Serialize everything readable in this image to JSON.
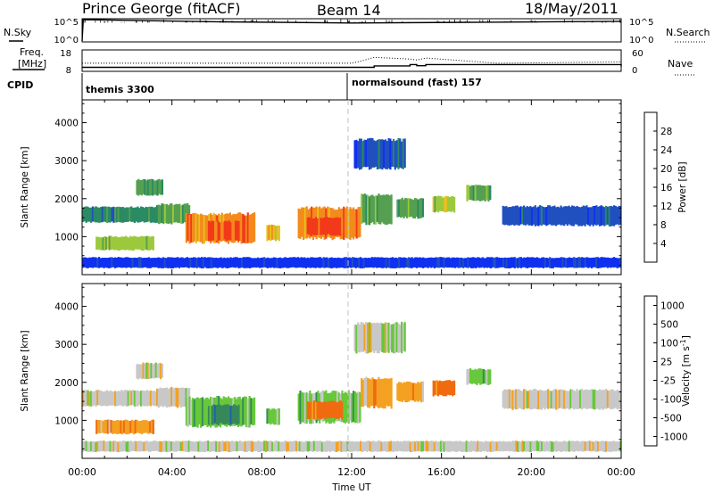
{
  "header": {
    "station": "Prince George (fitACF)",
    "beam": "Beam 14",
    "date": "18/May/2011"
  },
  "top_panels": {
    "nsky_label": "N.Sky",
    "nsky_ticks": [
      "10^5",
      "10^0"
    ],
    "nsearch_label": "N.Search",
    "nsearch_ticks": [
      "10^5",
      "10^0"
    ],
    "freq_label": "Freq.",
    "freq_unit": "[MHz]",
    "freq_ticks": [
      "18",
      "8"
    ],
    "nave_label": "Nave",
    "nave_ticks": [
      "60",
      "0"
    ],
    "cpid_label": "CPID",
    "cpid_entries": [
      {
        "name": "themis 3300",
        "start_hour": 0
      },
      {
        "name": "normalsound (fast) 157",
        "start_hour": 12
      }
    ]
  },
  "chart_data": [
    {
      "type": "heatmap",
      "panel": "power",
      "ylabel": "Slant Range [km]",
      "xlim": [
        0,
        24
      ],
      "ylim": [
        0,
        4600
      ],
      "yticks": [
        1000,
        2000,
        3000,
        4000
      ],
      "xticks": [
        "00:00",
        "04:00",
        "08:00",
        "12:00",
        "16:00",
        "20:00",
        "00:00"
      ],
      "colorbar": {
        "label": "Power [dB]",
        "min": 0,
        "max": 32,
        "ticks": [
          4,
          8,
          12,
          16,
          20,
          24,
          28
        ]
      },
      "colors": [
        "#1030f0",
        "#2050c0",
        "#2a8a64",
        "#55a050",
        "#9cc93c",
        "#e8c020",
        "#f48a1c",
        "#f23a1a"
      ],
      "echo_regions": [
        {
          "t0": 0.0,
          "t1": 3.3,
          "r0": 1380,
          "r1": 1780,
          "level": 2
        },
        {
          "t0": 0.6,
          "t1": 3.2,
          "r0": 650,
          "r1": 1000,
          "level": 4
        },
        {
          "t0": 3.3,
          "t1": 4.8,
          "r0": 1350,
          "r1": 1850,
          "level": 3
        },
        {
          "t0": 4.6,
          "t1": 7.7,
          "r0": 850,
          "r1": 1600,
          "level": 6
        },
        {
          "t0": 5.6,
          "t1": 7.0,
          "r0": 900,
          "r1": 1400,
          "level": 7
        },
        {
          "t0": 8.2,
          "t1": 8.8,
          "r0": 900,
          "r1": 1300,
          "level": 5
        },
        {
          "t0": 9.6,
          "t1": 12.4,
          "r0": 950,
          "r1": 1750,
          "level": 6
        },
        {
          "t0": 10.0,
          "t1": 11.6,
          "r0": 1050,
          "r1": 1500,
          "level": 7
        },
        {
          "t0": 12.4,
          "t1": 13.8,
          "r0": 1350,
          "r1": 2100,
          "level": 3
        },
        {
          "t0": 14.0,
          "t1": 15.2,
          "r0": 1500,
          "r1": 2000,
          "level": 3
        },
        {
          "t0": 15.6,
          "t1": 16.6,
          "r0": 1650,
          "r1": 2050,
          "level": 4
        },
        {
          "t0": 17.1,
          "t1": 18.2,
          "r0": 1950,
          "r1": 2350,
          "level": 3
        },
        {
          "t0": 18.7,
          "t1": 24.0,
          "r0": 1300,
          "r1": 1800,
          "level": 1
        },
        {
          "t0": 2.4,
          "t1": 3.6,
          "r0": 2100,
          "r1": 2500,
          "level": 3
        },
        {
          "t0": 12.1,
          "t1": 14.4,
          "r0": 2800,
          "r1": 3550,
          "level": 1
        },
        {
          "t0": 0.0,
          "t1": 24.0,
          "r0": 180,
          "r1": 450,
          "level": 0
        }
      ]
    },
    {
      "type": "heatmap",
      "panel": "velocity",
      "ylabel": "Slant Range [km]",
      "xlabel": "Time UT",
      "xlim": [
        0,
        24
      ],
      "ylim": [
        0,
        4600
      ],
      "yticks": [
        1000,
        2000,
        3000,
        4000
      ],
      "xticks": [
        "00:00",
        "04:00",
        "08:00",
        "12:00",
        "16:00",
        "20:00",
        "00:00"
      ],
      "colorbar": {
        "label": "Velocity [m s^-1]",
        "ticks": [
          "1000",
          "500",
          "100",
          "25",
          "-25",
          "-100",
          "-500",
          "-1000"
        ]
      },
      "colors": [
        "#1a1ad0",
        "#2060b0",
        "#36885a",
        "#66c83a",
        "#c8c8c8",
        "#f4a020",
        "#f06a10",
        "#e81818"
      ],
      "echo_regions": [
        {
          "t0": 0.0,
          "t1": 3.3,
          "r0": 1380,
          "r1": 1780,
          "level": 4
        },
        {
          "t0": 0.6,
          "t1": 3.2,
          "r0": 650,
          "r1": 1000,
          "level": 5
        },
        {
          "t0": 3.3,
          "t1": 4.8,
          "r0": 1350,
          "r1": 1850,
          "level": 4
        },
        {
          "t0": 4.6,
          "t1": 7.7,
          "r0": 850,
          "r1": 1600,
          "level": 3
        },
        {
          "t0": 5.6,
          "t1": 7.0,
          "r0": 900,
          "r1": 1400,
          "level": 2
        },
        {
          "t0": 8.2,
          "t1": 8.8,
          "r0": 900,
          "r1": 1300,
          "level": 3
        },
        {
          "t0": 9.6,
          "t1": 12.4,
          "r0": 950,
          "r1": 1750,
          "level": 3
        },
        {
          "t0": 10.0,
          "t1": 11.6,
          "r0": 1050,
          "r1": 1500,
          "level": 6
        },
        {
          "t0": 12.4,
          "t1": 13.8,
          "r0": 1350,
          "r1": 2100,
          "level": 5
        },
        {
          "t0": 14.0,
          "t1": 15.2,
          "r0": 1500,
          "r1": 2000,
          "level": 5
        },
        {
          "t0": 15.6,
          "t1": 16.6,
          "r0": 1650,
          "r1": 2050,
          "level": 6
        },
        {
          "t0": 17.1,
          "t1": 18.2,
          "r0": 1950,
          "r1": 2350,
          "level": 3
        },
        {
          "t0": 18.7,
          "t1": 24.0,
          "r0": 1300,
          "r1": 1800,
          "level": 4
        },
        {
          "t0": 2.4,
          "t1": 3.6,
          "r0": 2100,
          "r1": 2500,
          "level": 4
        },
        {
          "t0": 12.1,
          "t1": 14.4,
          "r0": 2800,
          "r1": 3550,
          "level": 4
        },
        {
          "t0": 0.0,
          "t1": 24.0,
          "r0": 180,
          "r1": 450,
          "level": 4
        }
      ]
    },
    {
      "type": "line",
      "panel": "frequency",
      "ylim": [
        8,
        18
      ],
      "x": [
        0,
        12,
        13.0,
        14.6,
        14.9,
        15.3,
        18.5,
        24
      ],
      "y": [
        9.6,
        9.6,
        10.3,
        11.0,
        10.4,
        11.0,
        11.0,
        10.0
      ]
    },
    {
      "type": "line",
      "panel": "nave",
      "ylim": [
        0,
        60
      ],
      "x": [
        0,
        12,
        12.5,
        13.0,
        14.6,
        14.9,
        15.3,
        18.5,
        24
      ],
      "y": [
        22,
        22,
        30,
        40,
        35,
        32,
        38,
        22,
        26
      ]
    },
    {
      "type": "line",
      "panel": "nsky",
      "x": [
        0,
        0.05,
        6,
        12,
        18,
        24
      ],
      "y": [
        0,
        5,
        4.5,
        4.2,
        4.4,
        4.6
      ]
    }
  ]
}
